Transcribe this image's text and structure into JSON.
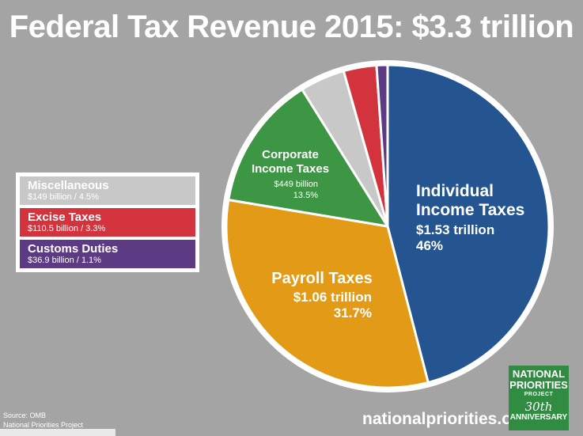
{
  "title": "Federal Tax Revenue 2015: $3.3 trillion",
  "chart_data": {
    "type": "pie",
    "title": "Federal Tax Revenue 2015: $3.3 trillion",
    "slices": [
      {
        "name": "Individual Income Taxes",
        "amount": "$1.53 trillion",
        "percent_label": "46%",
        "percent": 46.0,
        "color": "#245590",
        "label_lines": [
          "Individual",
          "Income Taxes"
        ],
        "detail_lines": [
          "$1.53 trillion",
          "46%"
        ]
      },
      {
        "name": "Payroll Taxes",
        "amount": "$1.06 trillion",
        "percent_label": "31.7%",
        "percent": 31.7,
        "color": "#e39a16",
        "label_lines": [
          "Payroll Taxes"
        ],
        "detail_lines": [
          "$1.06 trillion",
          "31.7%"
        ]
      },
      {
        "name": "Corporate Income Taxes",
        "amount": "$449 billion",
        "percent_label": "13.5%",
        "percent": 13.5,
        "color": "#3c9644",
        "label_lines": [
          "Corporate",
          "Income Taxes"
        ],
        "detail_lines": [
          "$449 billion",
          "13.5%"
        ]
      },
      {
        "name": "Miscellaneous",
        "amount": "$149 billion",
        "percent_label": "4.5%",
        "percent": 4.5,
        "color": "#c8c8c8",
        "label_lines": [],
        "detail_lines": []
      },
      {
        "name": "Excise Taxes",
        "amount": "$110.5 billion",
        "percent_label": "3.3%",
        "percent": 3.3,
        "color": "#d2333d",
        "label_lines": [],
        "detail_lines": []
      },
      {
        "name": "Customs Duties",
        "amount": "$36.9 billion",
        "percent_label": "1.1%",
        "percent": 1.1,
        "color": "#5d3a84",
        "label_lines": [],
        "detail_lines": []
      }
    ],
    "legend": {
      "placement": "left",
      "items": [
        {
          "name": "Miscellaneous",
          "detail": "$149 billion / 4.5%",
          "color": "#c8c8c8"
        },
        {
          "name": "Excise Taxes",
          "detail": "$110.5 billion / 3.3%",
          "color": "#d2333d"
        },
        {
          "name": "Customs Duties",
          "detail": "$36.9 billion / 1.1%",
          "color": "#5d3a84"
        }
      ]
    }
  },
  "footer": {
    "source_line1": "Source: OMB",
    "source_line2": "National Priorities Project",
    "website": "nationalpriorities.org"
  },
  "logo": {
    "line1": "NATIONAL",
    "line2": "PRIORITIES",
    "line3": "PROJECT",
    "line4": "30th",
    "line5": "ANNIVERSARY"
  },
  "colors": {
    "background": "#a4a4a4",
    "logo_green": "#2f8c40"
  }
}
